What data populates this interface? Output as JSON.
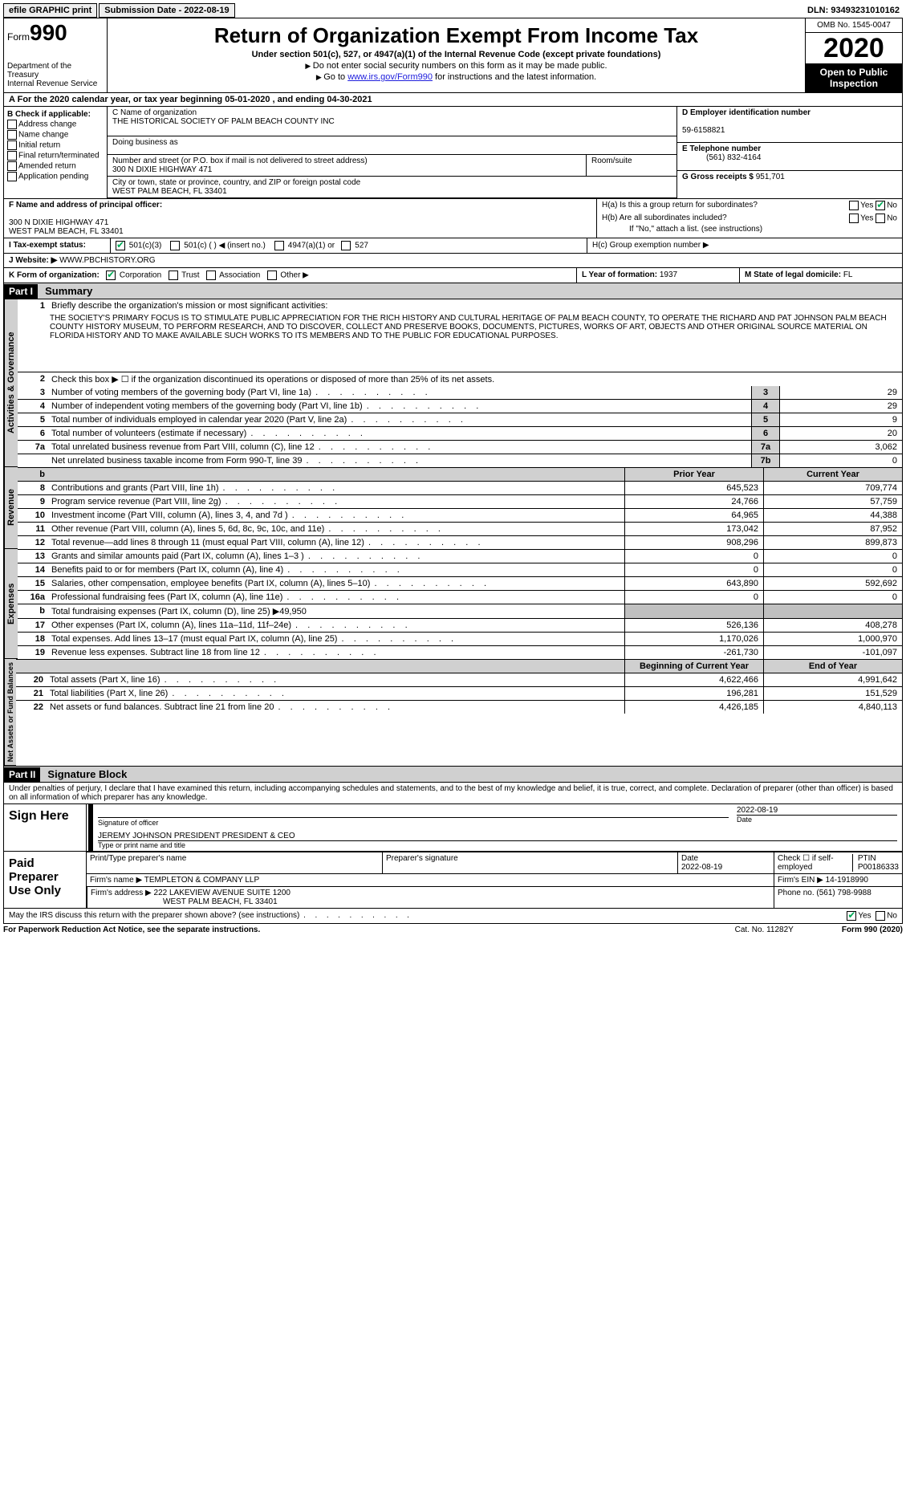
{
  "topbar": {
    "efile": "efile GRAPHIC print",
    "submission": "Submission Date - 2022-08-19",
    "dln": "DLN: 93493231010162"
  },
  "header": {
    "form_small": "Form",
    "form_big": "990",
    "dept1": "Department of the Treasury",
    "dept2": "Internal Revenue Service",
    "title": "Return of Organization Exempt From Income Tax",
    "subtitle": "Under section 501(c), 527, or 4947(a)(1) of the Internal Revenue Code (except private foundations)",
    "note1": "Do not enter social security numbers on this form as it may be made public.",
    "note2_pre": "Go to ",
    "note2_link": "www.irs.gov/Form990",
    "note2_post": " for instructions and the latest information.",
    "omb": "OMB No. 1545-0047",
    "year": "2020",
    "open": "Open to Public Inspection"
  },
  "rowA": "For the 2020 calendar year, or tax year beginning 05-01-2020   , and ending 04-30-2021",
  "colB": {
    "hdr": "B Check if applicable:",
    "items": [
      "Address change",
      "Name change",
      "Initial return",
      "Final return/terminated",
      "Amended return",
      "Application pending"
    ]
  },
  "colC": {
    "name_lbl": "C Name of organization",
    "name": "THE HISTORICAL SOCIETY OF PALM BEACH COUNTY INC",
    "dba_lbl": "Doing business as",
    "addr_lbl": "Number and street (or P.O. box if mail is not delivered to street address)",
    "room_lbl": "Room/suite",
    "addr": "300 N DIXIE HIGHWAY 471",
    "city_lbl": "City or town, state or province, country, and ZIP or foreign postal code",
    "city": "WEST PALM BEACH, FL  33401"
  },
  "colDE": {
    "d_lbl": "D Employer identification number",
    "d_val": "59-6158821",
    "e_lbl": "E Telephone number",
    "e_val": "(561) 832-4164",
    "g_lbl": "G Gross receipts $",
    "g_val": "951,701"
  },
  "rowF": {
    "lbl": "F Name and address of principal officer:",
    "l1": "300 N DIXIE HIGHWAY 471",
    "l2": "WEST PALM BEACH, FL  33401"
  },
  "rowH": {
    "ha": "H(a)  Is this a group return for subordinates?",
    "hb": "H(b)  Are all subordinates included?",
    "hb_note": "If \"No,\" attach a list. (see instructions)",
    "hc": "H(c)  Group exemption number ▶",
    "yes": "Yes",
    "no": "No"
  },
  "rowI": {
    "lbl": "I   Tax-exempt status:",
    "o1": "501(c)(3)",
    "o2": "501(c) (   ) ◀ (insert no.)",
    "o3": "4947(a)(1) or",
    "o4": "527"
  },
  "rowJ": {
    "lbl": "J   Website: ▶",
    "val": "WWW.PBCHISTORY.ORG"
  },
  "rowK": {
    "lbl": "K Form of organization:",
    "o1": "Corporation",
    "o2": "Trust",
    "o3": "Association",
    "o4": "Other ▶",
    "l_lbl": "L Year of formation:",
    "l_val": "1937",
    "m_lbl": "M State of legal domicile:",
    "m_val": "FL"
  },
  "part1": {
    "hdr": "Part I",
    "title": "Summary",
    "q1_lbl": "Briefly describe the organization's mission or most significant activities:",
    "mission": "THE SOCIETY'S PRIMARY FOCUS IS TO STIMULATE PUBLIC APPRECIATION FOR THE RICH HISTORY AND CULTURAL HERITAGE OF PALM BEACH COUNTY, TO OPERATE THE RICHARD AND PAT JOHNSON PALM BEACH COUNTY HISTORY MUSEUM, TO PERFORM RESEARCH, AND TO DISCOVER, COLLECT AND PRESERVE BOOKS, DOCUMENTS, PICTURES, WORKS OF ART, OBJECTS AND OTHER ORIGINAL SOURCE MATERIAL ON FLORIDA HISTORY AND TO MAKE AVAILABLE SUCH WORKS TO ITS MEMBERS AND TO THE PUBLIC FOR EDUCATIONAL PURPOSES.",
    "q2": "Check this box ▶ ☐  if the organization discontinued its operations or disposed of more than 25% of its net assets.",
    "tabs": {
      "ag": "Activities & Governance",
      "rev": "Revenue",
      "exp": "Expenses",
      "na": "Net Assets or Fund Balances"
    },
    "lines_single": [
      {
        "n": "3",
        "d": "Number of voting members of the governing body (Part VI, line 1a)",
        "b": "3",
        "v": "29"
      },
      {
        "n": "4",
        "d": "Number of independent voting members of the governing body (Part VI, line 1b)",
        "b": "4",
        "v": "29"
      },
      {
        "n": "5",
        "d": "Total number of individuals employed in calendar year 2020 (Part V, line 2a)",
        "b": "5",
        "v": "9"
      },
      {
        "n": "6",
        "d": "Total number of volunteers (estimate if necessary)",
        "b": "6",
        "v": "20"
      },
      {
        "n": "7a",
        "d": "Total unrelated business revenue from Part VIII, column (C), line 12",
        "b": "7a",
        "v": "3,062"
      },
      {
        "n": "",
        "d": "Net unrelated business taxable income from Form 990-T, line 39",
        "b": "7b",
        "v": "0"
      }
    ],
    "col_hdr": {
      "b": "b",
      "py": "Prior Year",
      "cy": "Current Year"
    },
    "lines_rev": [
      {
        "n": "8",
        "d": "Contributions and grants (Part VIII, line 1h)",
        "py": "645,523",
        "cy": "709,774"
      },
      {
        "n": "9",
        "d": "Program service revenue (Part VIII, line 2g)",
        "py": "24,766",
        "cy": "57,759"
      },
      {
        "n": "10",
        "d": "Investment income (Part VIII, column (A), lines 3, 4, and 7d )",
        "py": "64,965",
        "cy": "44,388"
      },
      {
        "n": "11",
        "d": "Other revenue (Part VIII, column (A), lines 5, 6d, 8c, 9c, 10c, and 11e)",
        "py": "173,042",
        "cy": "87,952"
      },
      {
        "n": "12",
        "d": "Total revenue—add lines 8 through 11 (must equal Part VIII, column (A), line 12)",
        "py": "908,296",
        "cy": "899,873"
      }
    ],
    "lines_exp": [
      {
        "n": "13",
        "d": "Grants and similar amounts paid (Part IX, column (A), lines 1–3 )",
        "py": "0",
        "cy": "0"
      },
      {
        "n": "14",
        "d": "Benefits paid to or for members (Part IX, column (A), line 4)",
        "py": "0",
        "cy": "0"
      },
      {
        "n": "15",
        "d": "Salaries, other compensation, employee benefits (Part IX, column (A), lines 5–10)",
        "py": "643,890",
        "cy": "592,692"
      },
      {
        "n": "16a",
        "d": "Professional fundraising fees (Part IX, column (A), line 11e)",
        "py": "0",
        "cy": "0"
      },
      {
        "n": "b",
        "d": "Total fundraising expenses (Part IX, column (D), line 25) ▶49,950",
        "py": "",
        "cy": "",
        "shaded": true
      },
      {
        "n": "17",
        "d": "Other expenses (Part IX, column (A), lines 11a–11d, 11f–24e)",
        "py": "526,136",
        "cy": "408,278"
      },
      {
        "n": "18",
        "d": "Total expenses. Add lines 13–17 (must equal Part IX, column (A), line 25)",
        "py": "1,170,026",
        "cy": "1,000,970"
      },
      {
        "n": "19",
        "d": "Revenue less expenses. Subtract line 18 from line 12",
        "py": "-261,730",
        "cy": "-101,097"
      }
    ],
    "na_hdr": {
      "py": "Beginning of Current Year",
      "cy": "End of Year"
    },
    "lines_na": [
      {
        "n": "20",
        "d": "Total assets (Part X, line 16)",
        "py": "4,622,466",
        "cy": "4,991,642"
      },
      {
        "n": "21",
        "d": "Total liabilities (Part X, line 26)",
        "py": "196,281",
        "cy": "151,529"
      },
      {
        "n": "22",
        "d": "Net assets or fund balances. Subtract line 21 from line 20",
        "py": "4,426,185",
        "cy": "4,840,113"
      }
    ]
  },
  "part2": {
    "hdr": "Part II",
    "title": "Signature Block",
    "decl": "Under penalties of perjury, I declare that I have examined this return, including accompanying schedules and statements, and to the best of my knowledge and belief, it is true, correct, and complete. Declaration of preparer (other than officer) is based on all information of which preparer has any knowledge.",
    "sign": "Sign Here",
    "sig_officer": "Signature of officer",
    "date": "Date",
    "date_val": "2022-08-19",
    "officer_name": "JEREMY JOHNSON PRESIDENT  PRESIDENT & CEO",
    "type_name": "Type or print name and title",
    "paid": "Paid Preparer Use Only",
    "p_name_lbl": "Print/Type preparer's name",
    "p_sig_lbl": "Preparer's signature",
    "p_date_lbl": "Date",
    "p_date": "2022-08-19",
    "p_check": "Check ☐ if self-employed",
    "ptin_lbl": "PTIN",
    "ptin": "P00186333",
    "firm_name_lbl": "Firm's name    ▶",
    "firm_name": "TEMPLETON & COMPANY LLP",
    "firm_ein_lbl": "Firm's EIN ▶",
    "firm_ein": "14-1918990",
    "firm_addr_lbl": "Firm's address ▶",
    "firm_addr1": "222 LAKEVIEW AVENUE SUITE 1200",
    "firm_addr2": "WEST PALM BEACH, FL  33401",
    "phone_lbl": "Phone no.",
    "phone": "(561) 798-9988",
    "discuss": "May the IRS discuss this return with the preparer shown above? (see instructions)",
    "yes": "Yes",
    "no": "No"
  },
  "footer": {
    "l": "For Paperwork Reduction Act Notice, see the separate instructions.",
    "c": "Cat. No. 11282Y",
    "r": "Form 990 (2020)"
  }
}
